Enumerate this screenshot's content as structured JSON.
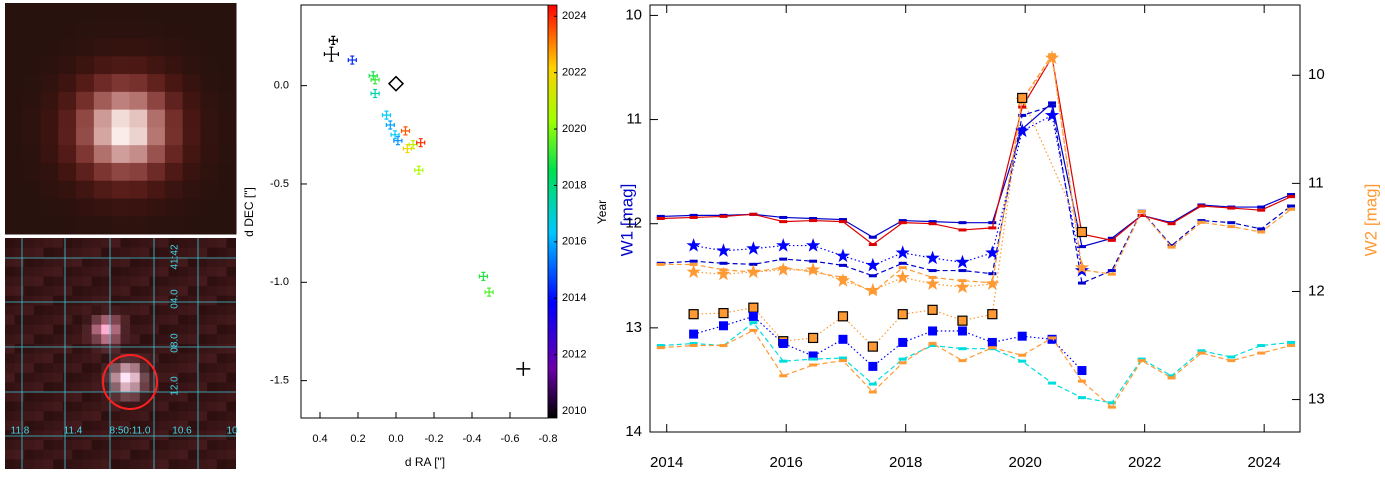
{
  "image_panels": {
    "labels": [
      "41:42",
      "04.0",
      "08.0",
      "12.0",
      "11.8",
      "11.4",
      "8:50:11.0",
      "10.6",
      "10"
    ]
  },
  "chart_data": [
    {
      "type": "scatter",
      "xlabel": "d RA [\"]",
      "ylabel": "d DEC [\"]",
      "xlim": [
        0.5,
        -0.8
      ],
      "ylim": [
        -1.69,
        0.41
      ],
      "xticks": [
        0.4,
        0.2,
        {
          "value": 0,
          "label": "0.0"
        },
        -0.2,
        -0.4,
        -0.6,
        -0.8
      ],
      "yticks": [
        {
          "value": 0,
          "label": "0.0"
        },
        -0.5,
        {
          "value": -1,
          "label": "-1.0"
        },
        -1.5
      ],
      "series": [
        {
          "x": [
            0.33,
            0.34,
            0.23,
            0.12,
            0.11,
            0.11,
            0.05,
            0.03,
            0.005,
            -0.01,
            -0.05,
            -0.06,
            -0.09,
            -0.13,
            -0.12,
            -0.46,
            -0.49
          ],
          "y": [
            0.23,
            0.16,
            0.13,
            0.05,
            0.03,
            -0.04,
            -0.15,
            -0.2,
            -0.25,
            -0.28,
            -0.23,
            -0.32,
            -0.3,
            -0.29,
            -0.43,
            -0.97,
            -1.05
          ],
          "years": [
            2010,
            2010,
            2014.5,
            2018.8,
            2019.2,
            2017.5,
            2016.5,
            2016,
            2016.5,
            2015.8,
            2023.5,
            2022,
            2021,
            2024,
            2020.5,
            2019,
            2019.5
          ]
        }
      ],
      "diamond": {
        "x": 0,
        "y": 0.01
      },
      "cross": {
        "x": -0.67,
        "y": -1.44
      },
      "colorbar": {
        "label": "Year",
        "lim": [
          2010,
          2024.4
        ],
        "ticks": [
          2010,
          2012,
          2014,
          2016,
          2018,
          2020,
          2022,
          2024
        ]
      }
    },
    {
      "type": "line",
      "ylabel": "W1 [mag]",
      "y2label": "W2 [mag]",
      "ylabel_color": "#0000cc",
      "y2label_color": "#ff9933",
      "xlim": [
        2013.72,
        2024.6
      ],
      "ylim": [
        14,
        9.9
      ],
      "y2lim": [
        13.3,
        9.35
      ],
      "xticks": [
        2014,
        2016,
        2018,
        2020,
        2022,
        2024
      ],
      "yticks": [
        10,
        11,
        12,
        13,
        14
      ],
      "y2ticks": [
        10,
        11,
        12,
        13
      ],
      "series": [
        {
          "color": "#0000cc",
          "dash": "solid",
          "marker": "bar",
          "x": [
            2013.9,
            2014.45,
            2014.95,
            2015.45,
            2015.95,
            2016.45,
            2016.95,
            2017.45,
            2017.95,
            2018.45,
            2018.95,
            2019.45,
            2019.95,
            2020.45,
            2020.95,
            2021.45,
            2021.95,
            2022.45,
            2022.95,
            2023.45,
            2023.95,
            2024.45
          ],
          "values": [
            11.93,
            11.92,
            11.92,
            11.91,
            11.94,
            11.95,
            11.96,
            12.13,
            11.97,
            11.98,
            11.99,
            11.99,
            11.09,
            10.84,
            12.22,
            12.14,
            11.92,
            11.99,
            11.82,
            11.84,
            11.84,
            11.72
          ]
        },
        {
          "color": "#dd0000",
          "dash": "solid",
          "marker": "bar",
          "x": [
            2013.9,
            2014.45,
            2014.95,
            2015.45,
            2015.95,
            2016.45,
            2016.95,
            2017.45,
            2017.95,
            2018.45,
            2018.95,
            2019.45,
            2019.95,
            2020.45,
            2020.95,
            2021.45,
            2021.95,
            2022.45,
            2022.95,
            2023.45,
            2023.95,
            2024.45
          ],
          "values": [
            11.95,
            11.94,
            11.93,
            11.91,
            11.98,
            11.97,
            11.98,
            12.2,
            11.99,
            12.0,
            12.06,
            12.04,
            10.88,
            10.4,
            12.1,
            12.16,
            11.92,
            12.0,
            11.83,
            11.85,
            11.87,
            11.74
          ]
        },
        {
          "color": "#0000cc",
          "dash": "dashed",
          "marker": "bar",
          "x": [
            2013.9,
            2014.45,
            2014.95,
            2015.45,
            2015.95,
            2016.45,
            2016.95,
            2017.45,
            2017.95,
            2018.45,
            2018.95,
            2019.45,
            2019.95,
            2020.45,
            2020.95,
            2021.45,
            2021.95,
            2022.45,
            2022.95,
            2023.45,
            2023.95,
            2024.45
          ],
          "values": [
            12.38,
            12.36,
            12.38,
            12.39,
            12.34,
            12.36,
            12.4,
            12.5,
            12.38,
            12.45,
            12.45,
            12.48,
            10.96,
            10.87,
            12.57,
            12.45,
            11.88,
            12.21,
            11.97,
            11.99,
            12.05,
            11.83
          ]
        },
        {
          "color": "#ff9933",
          "dash": "dashed",
          "marker": "bar",
          "axis": "y2",
          "x": [
            2013.9,
            2014.45,
            2014.95,
            2015.45,
            2015.95,
            2016.45,
            2016.95,
            2017.45,
            2017.95,
            2018.45,
            2018.95,
            2019.45,
            2019.95,
            2020.45,
            2020.95,
            2021.45,
            2021.95,
            2022.45,
            2022.95,
            2023.45,
            2023.95,
            2024.45
          ],
          "values": [
            11.75,
            11.75,
            11.8,
            11.82,
            11.78,
            11.82,
            11.87,
            12.01,
            11.78,
            11.87,
            11.9,
            11.92,
            10.23,
            9.81,
            11.8,
            11.84,
            11.26,
            11.59,
            11.36,
            11.4,
            11.45,
            11.24
          ]
        },
        {
          "color": "#0000ff",
          "dash": "dotted",
          "marker": "star",
          "x": [
            2014.45,
            2014.95,
            2015.45,
            2015.95,
            2016.45,
            2016.95,
            2017.45,
            2017.95,
            2018.45,
            2018.95,
            2019.45,
            2019.95,
            2020.45,
            2020.95
          ],
          "values": [
            12.21,
            12.26,
            12.24,
            12.21,
            12.21,
            12.31,
            12.4,
            12.28,
            12.33,
            12.37,
            12.28,
            11.11,
            10.96,
            12.45
          ]
        },
        {
          "color": "#ff9933",
          "dash": "dotted",
          "marker": "star",
          "axis": "y2",
          "x": [
            2014.45,
            2014.95,
            2015.45,
            2015.95,
            2016.45,
            2016.95,
            2017.45,
            2017.95,
            2018.45,
            2018.95,
            2019.45,
            2019.95,
            2020.45,
            2020.95
          ],
          "values": [
            11.82,
            11.84,
            11.82,
            11.8,
            11.8,
            11.9,
            11.99,
            11.87,
            11.93,
            11.96,
            11.93,
            10.23,
            9.84,
            11.78
          ]
        },
        {
          "color": "#ff9933",
          "dash": "dotted",
          "marker": "square",
          "edge": "#000000",
          "axis": "y2",
          "x": [
            2014.45,
            2014.95,
            2015.45,
            2015.95,
            2016.45,
            2016.95,
            2017.45,
            2017.95,
            2018.45,
            2018.95,
            2019.45,
            2019.95,
            2020.95
          ],
          "values": [
            12.21,
            12.2,
            12.15,
            12.46,
            12.43,
            12.23,
            12.51,
            12.21,
            12.17,
            12.27,
            12.21,
            10.21,
            11.45
          ]
        },
        {
          "color": "#0000ff",
          "dash": "dotted",
          "marker": "square",
          "x": [
            2014.45,
            2014.95,
            2015.45,
            2015.95,
            2016.45,
            2016.95,
            2017.45,
            2017.95,
            2018.45,
            2018.95,
            2019.45,
            2019.95,
            2020.45,
            2020.95
          ],
          "values": [
            13.06,
            12.98,
            12.89,
            13.15,
            13.27,
            13.11,
            13.37,
            13.14,
            13.03,
            13.03,
            13.14,
            13.08,
            13.11,
            13.41
          ]
        },
        {
          "color": "#00dddd",
          "dash": "dashed",
          "marker": "bar",
          "x": [
            2013.9,
            2014.45,
            2014.95,
            2015.45,
            2015.95,
            2016.45,
            2016.95,
            2017.45,
            2017.95,
            2018.45,
            2018.95,
            2019.45,
            2019.95,
            2020.45,
            2020.95,
            2021.45,
            2021.95,
            2022.45,
            2022.95,
            2023.45,
            2023.95,
            2024.45
          ],
          "values": [
            13.17,
            13.15,
            13.17,
            12.95,
            13.32,
            13.3,
            13.29,
            13.54,
            13.3,
            13.17,
            13.2,
            13.2,
            13.32,
            13.53,
            13.67,
            13.72,
            13.3,
            13.46,
            13.22,
            13.28,
            13.17,
            13.14
          ]
        },
        {
          "color": "#ff9933",
          "dash": "dashed",
          "marker": "bar",
          "axis": "y2",
          "x": [
            2013.9,
            2014.45,
            2014.95,
            2015.45,
            2015.95,
            2016.45,
            2016.95,
            2017.45,
            2017.95,
            2018.45,
            2018.95,
            2019.45,
            2019.95,
            2020.45,
            2020.95,
            2021.45,
            2021.95,
            2022.45,
            2022.95,
            2023.45,
            2023.95,
            2024.45
          ],
          "values": [
            12.52,
            12.5,
            12.5,
            12.36,
            12.78,
            12.68,
            12.64,
            12.93,
            12.66,
            12.48,
            12.64,
            12.52,
            12.59,
            12.43,
            12.83,
            13.07,
            12.64,
            12.8,
            12.57,
            12.64,
            12.57,
            12.5
          ]
        }
      ]
    }
  ]
}
